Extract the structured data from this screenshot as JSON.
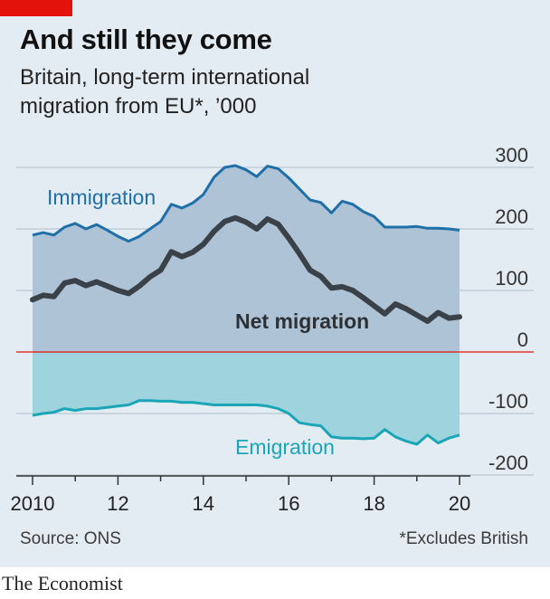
{
  "header": {
    "title": "And still they come",
    "subtitle": "Britain, long-term international migration from EU*, ’000"
  },
  "footer": {
    "source": "Source: ONS",
    "footnote": "*Excludes British",
    "brand": "The Economist"
  },
  "colors": {
    "background": "#e3ecf2",
    "accent_red": "#e3120b",
    "immigration": "#1f6fa8",
    "net_migration": "#3a4148",
    "emigration": "#1aa6b7",
    "upper_fill": "#afc3d6",
    "lower_fill": "#9fd3de",
    "zero_line": "#e3120b",
    "grid": "#b9c7d3"
  },
  "chart_data": {
    "type": "line",
    "x_tick_labels": [
      "2010",
      "12",
      "14",
      "16",
      "18",
      "20"
    ],
    "x_tick_values": [
      2010,
      2012,
      2014,
      2016,
      2018,
      2020
    ],
    "xlim": [
      2009.5,
      2020.5
    ],
    "y_tick_labels": [
      "300",
      "200",
      "100",
      "0",
      "-100",
      "-200"
    ],
    "y_tick_values": [
      300,
      200,
      100,
      0,
      -100,
      -200
    ],
    "ylim": [
      -200,
      300
    ],
    "grid": true,
    "x": [
      2010.0,
      2010.25,
      2010.5,
      2010.75,
      2011.0,
      2011.25,
      2011.5,
      2011.75,
      2012.0,
      2012.25,
      2012.5,
      2012.75,
      2013.0,
      2013.25,
      2013.5,
      2013.75,
      2014.0,
      2014.25,
      2014.5,
      2014.75,
      2015.0,
      2015.25,
      2015.5,
      2015.75,
      2016.0,
      2016.25,
      2016.5,
      2016.75,
      2017.0,
      2017.25,
      2017.5,
      2017.75,
      2018.0,
      2018.25,
      2018.5,
      2018.75,
      2019.0,
      2019.25,
      2019.5,
      2019.75,
      2020.0
    ],
    "series": [
      {
        "name": "Immigration",
        "values": [
          190,
          194,
          190,
          203,
          209,
          200,
          207,
          198,
          188,
          180,
          188,
          200,
          212,
          240,
          234,
          242,
          256,
          284,
          300,
          303,
          296,
          285,
          302,
          298,
          283,
          265,
          247,
          243,
          226,
          245,
          240,
          228,
          220,
          203,
          203,
          203,
          204,
          201,
          201,
          200,
          198
        ]
      },
      {
        "name": "Net migration",
        "values": [
          85,
          92,
          90,
          112,
          116,
          108,
          114,
          107,
          100,
          95,
          107,
          122,
          133,
          163,
          155,
          162,
          175,
          196,
          212,
          218,
          211,
          200,
          216,
          208,
          185,
          160,
          133,
          123,
          104,
          106,
          100,
          88,
          75,
          62,
          78,
          70,
          60,
          50,
          64,
          55,
          57
        ]
      },
      {
        "name": "Emigration",
        "values": [
          -103,
          -100,
          -98,
          -92,
          -95,
          -92,
          -92,
          -90,
          -88,
          -86,
          -79,
          -79,
          -80,
          -80,
          -82,
          -82,
          -84,
          -86,
          -86,
          -86,
          -86,
          -86,
          -88,
          -92,
          -100,
          -115,
          -118,
          -120,
          -138,
          -140,
          -140,
          -141,
          -140,
          -126,
          -138,
          -145,
          -150,
          -135,
          -148,
          -140,
          -135
        ]
      }
    ]
  }
}
